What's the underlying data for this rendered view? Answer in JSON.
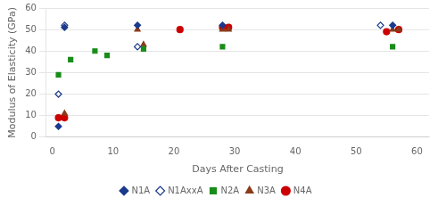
{
  "chart_data": {
    "type": "scatter",
    "x_label": "Days After Casting",
    "y_label": "Modulus of Elasticity (GPa)",
    "series": [
      {
        "name": "N1A",
        "color": "#1a3a8c",
        "marker": "diamond",
        "x": [
          1,
          2,
          14,
          28,
          56
        ],
        "values": [
          5,
          51,
          52,
          52,
          52
        ]
      },
      {
        "name": "N1AxxA",
        "color": "#1a3a8c",
        "marker": "diamond-open",
        "x": [
          1,
          2,
          14,
          54
        ],
        "values": [
          20,
          52,
          42,
          52
        ]
      },
      {
        "name": "N2A",
        "color": "#1a8c1a",
        "marker": "square",
        "x": [
          1,
          3,
          7,
          9,
          15,
          28,
          56
        ],
        "values": [
          29,
          36,
          40,
          38,
          41,
          42,
          42
        ]
      },
      {
        "name": "N3A",
        "color": "#8b3a1a",
        "marker": "triangle",
        "x": [
          2,
          14,
          15,
          28,
          29,
          56,
          57
        ],
        "values": [
          11,
          50,
          43,
          50,
          50,
          50,
          50
        ]
      },
      {
        "name": "N4A",
        "color": "#cc0000",
        "marker": "circle",
        "x": [
          1,
          2,
          21,
          28,
          29,
          55,
          57
        ],
        "values": [
          9,
          9,
          50,
          51,
          51,
          49,
          50
        ]
      }
    ],
    "xlim": [
      -1,
      62
    ],
    "ylim": [
      0,
      60
    ],
    "xticks": [
      0,
      10,
      20,
      30,
      40,
      50,
      60
    ],
    "yticks": [
      0,
      10,
      20,
      30,
      40,
      50,
      60
    ],
    "grid": "y",
    "legend": "bottom"
  }
}
